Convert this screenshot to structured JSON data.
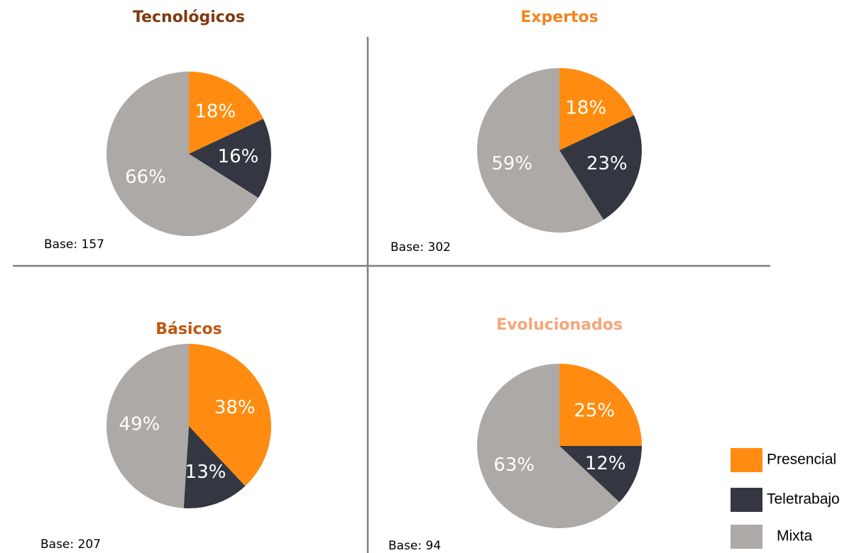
{
  "chart_data": [
    {
      "type": "pie",
      "title": "Tecnológicos",
      "title_color": "#7f3a10",
      "categories": [
        "Presencial",
        "Teletrabajo",
        "Mixta"
      ],
      "values": [
        18,
        16,
        66
      ],
      "value_labels": [
        "18%",
        "16%",
        "66%"
      ],
      "colors": [
        "#ff8c10",
        "#343741",
        "#ada9a7"
      ],
      "note": "Base: 157"
    },
    {
      "type": "pie",
      "title": "Expertos",
      "title_color": "#f5841f",
      "categories": [
        "Presencial",
        "Teletrabajo",
        "Mixta"
      ],
      "values": [
        18,
        23,
        59
      ],
      "value_labels": [
        "18%",
        "23%",
        "59%"
      ],
      "colors": [
        "#ff8c10",
        "#343741",
        "#ada9a7"
      ],
      "note": "Base: 302"
    },
    {
      "type": "pie",
      "title": "Básicos",
      "title_color": "#c0560f",
      "categories": [
        "Presencial",
        "Teletrabajo",
        "Mixta"
      ],
      "values": [
        38,
        13,
        49
      ],
      "value_labels": [
        "38%",
        "13%",
        "49%"
      ],
      "colors": [
        "#ff8c10",
        "#343741",
        "#ada9a7"
      ],
      "note": "Base: 207"
    },
    {
      "type": "pie",
      "title": "Evolucionados",
      "title_color": "#f4a77a",
      "categories": [
        "Presencial",
        "Teletrabajo",
        "Mixta"
      ],
      "values": [
        25,
        12,
        63
      ],
      "value_labels": [
        "25%",
        "12%",
        "63%"
      ],
      "colors": [
        "#ff8c10",
        "#343741",
        "#ada9a7"
      ],
      "note": "Base: 94"
    }
  ]
}
